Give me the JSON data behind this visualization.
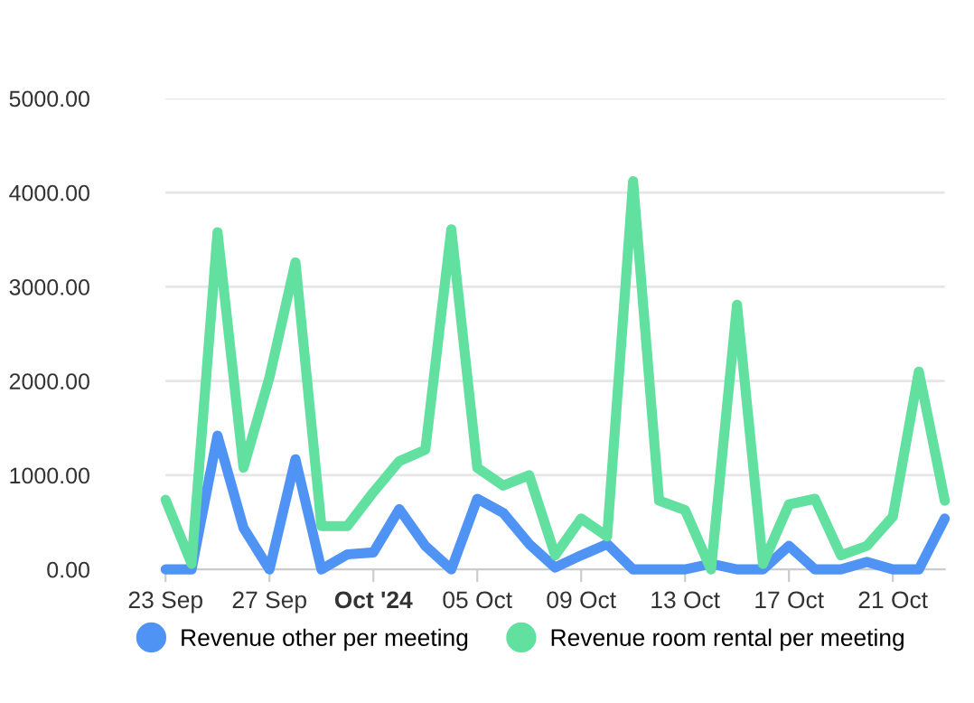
{
  "chart_data": {
    "type": "line",
    "x": [
      "2024-09-23",
      "2024-09-24",
      "2024-09-25",
      "2024-09-26",
      "2024-09-27",
      "2024-09-28",
      "2024-09-29",
      "2024-09-30",
      "2024-10-01",
      "2024-10-02",
      "2024-10-03",
      "2024-10-04",
      "2024-10-05",
      "2024-10-06",
      "2024-10-07",
      "2024-10-08",
      "2024-10-09",
      "2024-10-10",
      "2024-10-11",
      "2024-10-12",
      "2024-10-13",
      "2024-10-14",
      "2024-10-15",
      "2024-10-16",
      "2024-10-17",
      "2024-10-18",
      "2024-10-19",
      "2024-10-20",
      "2024-10-21",
      "2024-10-22",
      "2024-10-23"
    ],
    "series": [
      {
        "name": "Revenue other per meeting",
        "color": "#4f94f4",
        "values": [
          0,
          0,
          1420,
          440,
          0,
          1170,
          0,
          160,
          180,
          640,
          250,
          0,
          750,
          600,
          270,
          20,
          150,
          270,
          0,
          0,
          0,
          60,
          0,
          0,
          250,
          0,
          0,
          80,
          0,
          0,
          540
        ]
      },
      {
        "name": "Revenue room rental per meeting",
        "color": "#62e0a0",
        "values": [
          740,
          60,
          3580,
          1080,
          2040,
          3260,
          460,
          460,
          820,
          1150,
          1270,
          3610,
          1080,
          890,
          1000,
          150,
          540,
          350,
          4120,
          730,
          630,
          0,
          2810,
          60,
          690,
          750,
          150,
          250,
          560,
          2100,
          730
        ]
      }
    ],
    "xlim": [
      "2024-09-23",
      "2024-10-23"
    ],
    "xticks": [
      {
        "value": "2024-09-23",
        "label": "23 Sep"
      },
      {
        "value": "2024-09-27",
        "label": "27 Sep"
      },
      {
        "value": "2024-10-01",
        "label": "Oct '24"
      },
      {
        "value": "2024-10-05",
        "label": "05 Oct"
      },
      {
        "value": "2024-10-09",
        "label": "09 Oct"
      },
      {
        "value": "2024-10-13",
        "label": "13 Oct"
      },
      {
        "value": "2024-10-17",
        "label": "17 Oct"
      },
      {
        "value": "2024-10-21",
        "label": "21 Oct"
      }
    ],
    "ylim": [
      0,
      5000
    ],
    "yticks": [
      {
        "value": 0,
        "label": "0.00"
      },
      {
        "value": 1000,
        "label": "1000.00"
      },
      {
        "value": 2000,
        "label": "2000.00"
      },
      {
        "value": 3000,
        "label": "3000.00"
      },
      {
        "value": 4000,
        "label": "4000.00"
      },
      {
        "value": 5000,
        "label": "5000.00"
      }
    ],
    "grid": "y",
    "legend": "bottom",
    "marker": "none",
    "line_style": "solid"
  }
}
